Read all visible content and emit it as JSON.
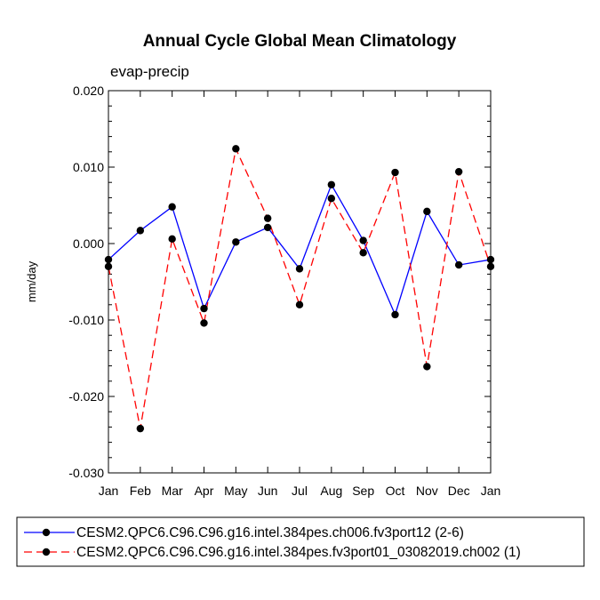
{
  "chart_data": {
    "type": "line",
    "title": "Annual Cycle Global Mean Climatology",
    "subtitle": "evap-precip",
    "xlabel": "",
    "ylabel": "mm/day",
    "categories": [
      "Jan",
      "Feb",
      "Mar",
      "Apr",
      "May",
      "Jun",
      "Jul",
      "Aug",
      "Sep",
      "Oct",
      "Nov",
      "Dec",
      "Jan"
    ],
    "ylim": [
      -0.03,
      0.02
    ],
    "yticks": [
      -0.03,
      -0.02,
      -0.01,
      0.0,
      0.01,
      0.02
    ],
    "ytick_labels": [
      "-0.030",
      "-0.020",
      "-0.010",
      "0.000",
      "0.010",
      "0.020"
    ],
    "grid": false,
    "legend_position": "bottom",
    "series": [
      {
        "name": "CESM2.QPC6.C96.C96.g16.intel.384pes.ch006.fv3port12 (2-6)",
        "color": "#0000ff",
        "dash": "solid",
        "marker": "filled-circle",
        "values": [
          -0.0021,
          0.0017,
          0.0048,
          -0.0085,
          0.0002,
          0.0021,
          -0.0033,
          0.0077,
          0.0004,
          -0.0093,
          0.0042,
          -0.0028,
          -0.0021
        ]
      },
      {
        "name": "CESM2.QPC6.C96.C96.g16.intel.384pes.fv3port01_03082019.ch002 (1)",
        "color": "#ff0000",
        "dash": "dashed",
        "marker": "filled-circle",
        "values": [
          -0.003,
          -0.0242,
          0.0006,
          -0.0104,
          0.0124,
          0.0033,
          -0.008,
          0.0059,
          -0.0012,
          0.0093,
          -0.0161,
          0.0094,
          -0.003
        ]
      }
    ]
  }
}
